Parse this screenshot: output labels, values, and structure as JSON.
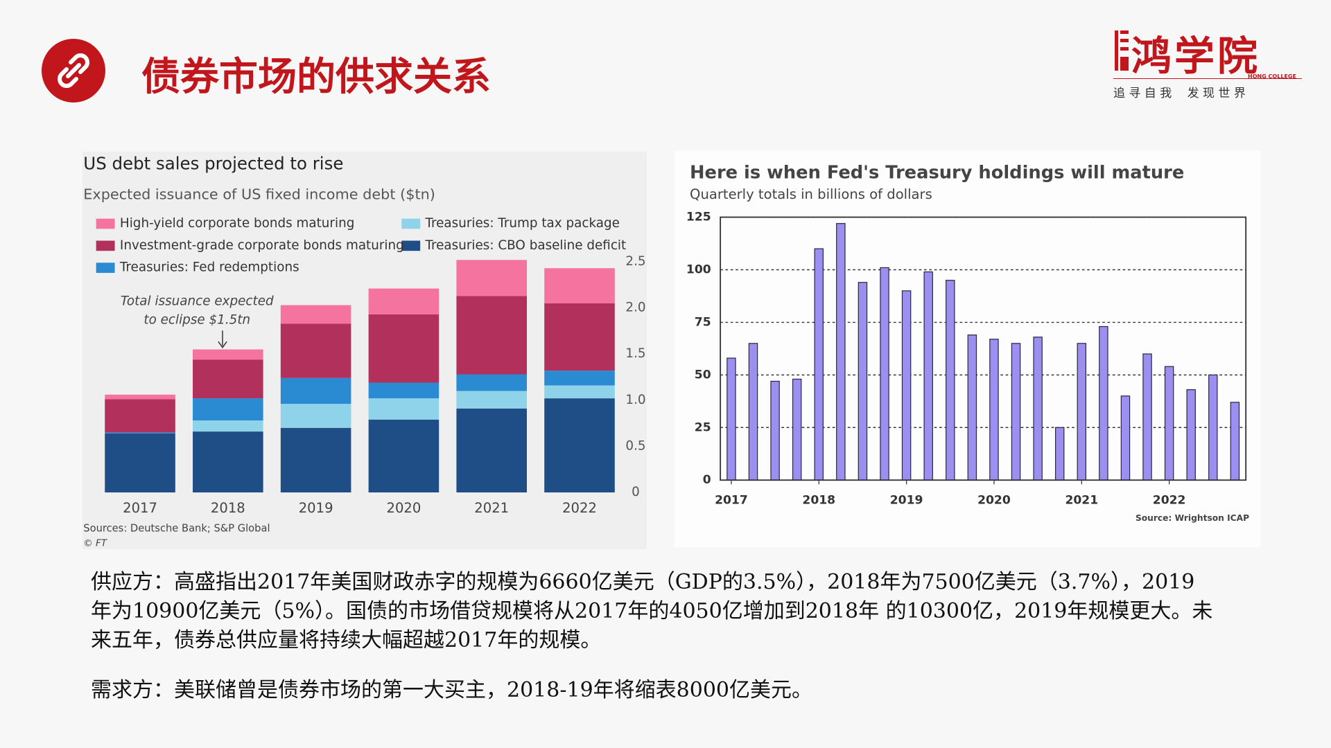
{
  "header": {
    "title": "债券市场的供求关系",
    "logo": {
      "name": "鸿学院",
      "english": "HONG COLLEGE",
      "slogan": "追 寻 自 我　 发 现 世 界"
    }
  },
  "chart_data": [
    {
      "type": "stacked_bar",
      "title": "US debt sales projected to rise",
      "subtitle": "Expected issuance of US fixed income debt ($tn)",
      "categories": [
        "2017",
        "2018",
        "2019",
        "2020",
        "2021",
        "2022"
      ],
      "series": [
        {
          "name": "Treasuries: CBO baseline deficit",
          "color": "#1f4e86",
          "values": [
            0.64,
            0.66,
            0.7,
            0.79,
            0.91,
            1.02
          ]
        },
        {
          "name": "Treasuries: Trump tax package",
          "color": "#8fd3ea",
          "values": [
            0,
            0.12,
            0.26,
            0.23,
            0.19,
            0.14
          ]
        },
        {
          "name": "Treasuries: Fed redemptions",
          "color": "#2a8ad2",
          "values": [
            0.01,
            0.24,
            0.28,
            0.17,
            0.18,
            0.16
          ]
        },
        {
          "name": "Investment-grade corporate bonds maturing",
          "color": "#b2305c",
          "values": [
            0.36,
            0.42,
            0.59,
            0.74,
            0.85,
            0.73
          ]
        },
        {
          "name": "High-yield corporate bonds maturing",
          "color": "#f5739f",
          "values": [
            0.05,
            0.11,
            0.2,
            0.28,
            0.39,
            0.38
          ]
        }
      ],
      "ylim": [
        0,
        2.6
      ],
      "yticks": [
        0,
        0.5,
        {
          "value": 1,
          "label": "1.0"
        },
        1.5,
        {
          "value": 2,
          "label": "2.0"
        },
        2.5
      ],
      "annotation": [
        "Total issuance expected",
        "to eclipse $1.5tn"
      ],
      "source": "Sources: Deutsche Bank; S&P Global",
      "credit": "© FT"
    },
    {
      "type": "bar",
      "title": "Here is when Fed's Treasury holdings will mature",
      "subtitle": "Quarterly totals in billions of dollars",
      "categories": [
        "2017",
        null,
        null,
        null,
        "2018",
        null,
        null,
        null,
        "2019",
        null,
        null,
        null,
        "2020",
        null,
        null,
        null,
        "2021",
        null,
        null,
        null,
        "2022",
        null,
        null,
        null
      ],
      "values": [
        58,
        65,
        47,
        48,
        110,
        122,
        94,
        101,
        90,
        99,
        95,
        69,
        67,
        65,
        68,
        25,
        65,
        73,
        40,
        60,
        54,
        43,
        50,
        37
      ],
      "color": "#9b8ff0",
      "ylim": [
        0,
        125
      ],
      "yticks": [
        0,
        25,
        50,
        75,
        100,
        125
      ],
      "grid": true,
      "source": "Source: Wrightson ICAP"
    }
  ],
  "paragraphs": [
    "供应方：高盛指出2017年美国财政赤字的规模为6660亿美元（GDP的3.5%），2018年为7500亿美元（3.7%），2019年为10900亿美元（5%）。国债的市场借贷规模将从2017年的4050亿增加到2018年 的10300亿，2019年规模更大。未来五年，债券总供应量将持续大幅超越2017年的规模。",
    "需求方：美联储曾是债券市场的第一大买主，2018-19年将缩表8000亿美元。"
  ]
}
